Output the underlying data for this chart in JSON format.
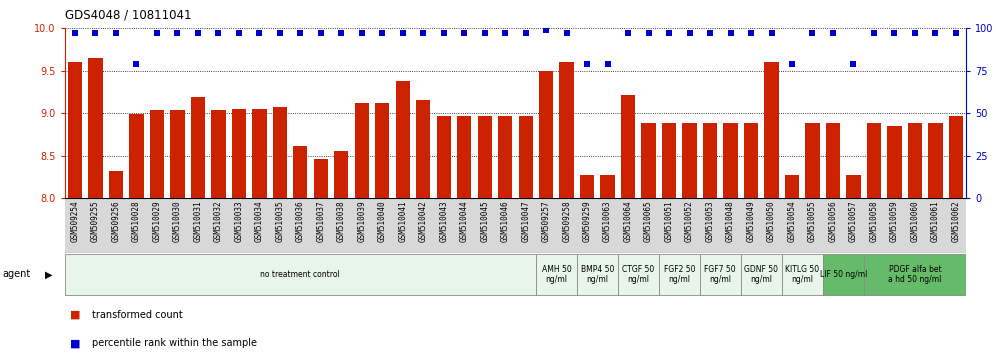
{
  "title": "GDS4048 / 10811041",
  "samples": [
    "GSM509254",
    "GSM509255",
    "GSM509256",
    "GSM510028",
    "GSM510029",
    "GSM510030",
    "GSM510031",
    "GSM510032",
    "GSM510033",
    "GSM510034",
    "GSM510035",
    "GSM510036",
    "GSM510037",
    "GSM510038",
    "GSM510039",
    "GSM510040",
    "GSM510041",
    "GSM510042",
    "GSM510043",
    "GSM510044",
    "GSM510045",
    "GSM510046",
    "GSM510047",
    "GSM509257",
    "GSM509258",
    "GSM509259",
    "GSM510063",
    "GSM510064",
    "GSM510065",
    "GSM510051",
    "GSM510052",
    "GSM510053",
    "GSM510048",
    "GSM510049",
    "GSM510050",
    "GSM510054",
    "GSM510055",
    "GSM510056",
    "GSM510057",
    "GSM510058",
    "GSM510059",
    "GSM510060",
    "GSM510061",
    "GSM510062"
  ],
  "bar_values": [
    9.6,
    9.65,
    8.32,
    8.99,
    9.04,
    9.04,
    9.19,
    9.04,
    9.05,
    9.05,
    9.07,
    8.62,
    8.46,
    8.56,
    9.12,
    9.12,
    9.38,
    9.16,
    8.97,
    8.97,
    8.97,
    8.97,
    8.97,
    9.5,
    9.6,
    8.27,
    8.27,
    9.22,
    8.88,
    8.88,
    8.88,
    8.88,
    8.88,
    8.88,
    9.6,
    8.27,
    8.88,
    8.88,
    8.27,
    8.88,
    8.85,
    8.88,
    8.88,
    8.97
  ],
  "percentile_values": [
    97,
    97,
    97,
    79,
    97,
    97,
    97,
    97,
    97,
    97,
    97,
    97,
    97,
    97,
    97,
    97,
    97,
    97,
    97,
    97,
    97,
    97,
    97,
    99,
    97,
    79,
    79,
    97,
    97,
    97,
    97,
    97,
    97,
    97,
    97,
    79,
    97,
    97,
    79,
    97,
    97,
    97,
    97,
    97
  ],
  "agent_groups": [
    {
      "label": "no treatment control",
      "start": 0,
      "end": 23,
      "color": "#e8f5e9"
    },
    {
      "label": "AMH 50\nng/ml",
      "start": 23,
      "end": 25,
      "color": "#e8f5e9"
    },
    {
      "label": "BMP4 50\nng/ml",
      "start": 25,
      "end": 27,
      "color": "#e8f5e9"
    },
    {
      "label": "CTGF 50\nng/ml",
      "start": 27,
      "end": 29,
      "color": "#e8f5e9"
    },
    {
      "label": "FGF2 50\nng/ml",
      "start": 29,
      "end": 31,
      "color": "#e8f5e9"
    },
    {
      "label": "FGF7 50\nng/ml",
      "start": 31,
      "end": 33,
      "color": "#e8f5e9"
    },
    {
      "label": "GDNF 50\nng/ml",
      "start": 33,
      "end": 35,
      "color": "#e8f5e9"
    },
    {
      "label": "KITLG 50\nng/ml",
      "start": 35,
      "end": 37,
      "color": "#e8f5e9"
    },
    {
      "label": "LIF 50 ng/ml",
      "start": 37,
      "end": 39,
      "color": "#66bb6a"
    },
    {
      "label": "PDGF alfa bet\na hd 50 ng/ml",
      "start": 39,
      "end": 44,
      "color": "#66bb6a"
    }
  ],
  "bar_color": "#cc2200",
  "dot_color": "#0000cc",
  "ylim_left": [
    8.0,
    10.0
  ],
  "ylim_right": [
    0,
    100
  ],
  "yticks_left": [
    8.0,
    8.5,
    9.0,
    9.5,
    10.0
  ],
  "yticks_right": [
    0,
    25,
    50,
    75,
    100
  ],
  "grid_lines": [
    8.5,
    9.0,
    9.5
  ],
  "bar_bottom": 8.0,
  "background_color": "#ffffff"
}
